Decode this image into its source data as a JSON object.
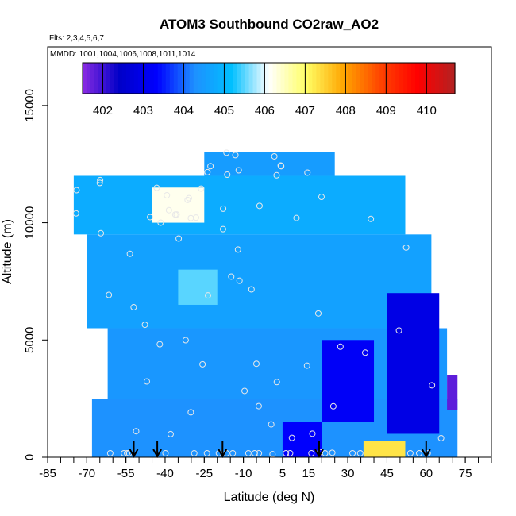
{
  "chart_data": {
    "type": "heatmap",
    "title": "ATOM3 Southbound CO2raw_AO2",
    "subtitle_flights": "Flts: 2,3,4,5,6,7",
    "subtitle_dates": "MMDD: 1001,1004,1006,1008,1011,1014",
    "xlabel": "Latitude (deg N)",
    "ylabel": "Altitude (m)",
    "xlim": [
      -85,
      85
    ],
    "ylim": [
      0,
      17500
    ],
    "x_ticks": [
      -85,
      -70,
      -55,
      -40,
      -25,
      -10,
      5,
      15,
      30,
      45,
      60,
      75
    ],
    "y_ticks": [
      0,
      5000,
      10000,
      15000
    ],
    "colorbar": {
      "min": 401.5,
      "max": 410.7,
      "ticks": [
        402,
        403,
        404,
        405,
        406,
        407,
        408,
        409,
        410
      ],
      "colors": [
        "#8a2be2",
        "#0000c8",
        "#0000ff",
        "#1e90ff",
        "#00bfff",
        "#ffffff",
        "#ffff66",
        "#ffa500",
        "#ff4500",
        "#ff0000",
        "#b22222"
      ]
    },
    "profile_markers_lat": [
      -52,
      -43,
      -18,
      19,
      60
    ],
    "regions": [
      {
        "lat_min": -68,
        "lat_max": 72,
        "alt_min": 0,
        "alt_max": 2500,
        "value": 404.3
      },
      {
        "lat_min": -62,
        "lat_max": 68,
        "alt_min": 2500,
        "alt_max": 5500,
        "value": 404.4
      },
      {
        "lat_min": -70,
        "lat_max": 62,
        "alt_min": 5500,
        "alt_max": 9500,
        "value": 404.6
      },
      {
        "lat_min": -75,
        "lat_max": 52,
        "alt_min": 9500,
        "alt_max": 12000,
        "value": 404.8
      },
      {
        "lat_min": -25,
        "lat_max": 25,
        "alt_min": 12000,
        "alt_max": 13000,
        "value": 404.5
      },
      {
        "lat_min": -45,
        "lat_max": -25,
        "alt_min": 10000,
        "alt_max": 11500,
        "value": 406.2
      },
      {
        "lat_min": -35,
        "lat_max": -20,
        "alt_min": 6500,
        "alt_max": 8000,
        "value": 405.5
      },
      {
        "lat_min": 20,
        "lat_max": 40,
        "alt_min": 1500,
        "alt_max": 5000,
        "value": 403.2
      },
      {
        "lat_min": 45,
        "lat_max": 65,
        "alt_min": 1000,
        "alt_max": 7000,
        "value": 402.9
      },
      {
        "lat_min": 68,
        "lat_max": 72,
        "alt_min": 2000,
        "alt_max": 3500,
        "value": 401.8
      },
      {
        "lat_min": 36,
        "lat_max": 52,
        "alt_min": 0,
        "alt_max": 700,
        "value": 407.3
      },
      {
        "lat_min": 5,
        "lat_max": 20,
        "alt_min": 0,
        "alt_max": 1500,
        "value": 403.3
      }
    ]
  }
}
